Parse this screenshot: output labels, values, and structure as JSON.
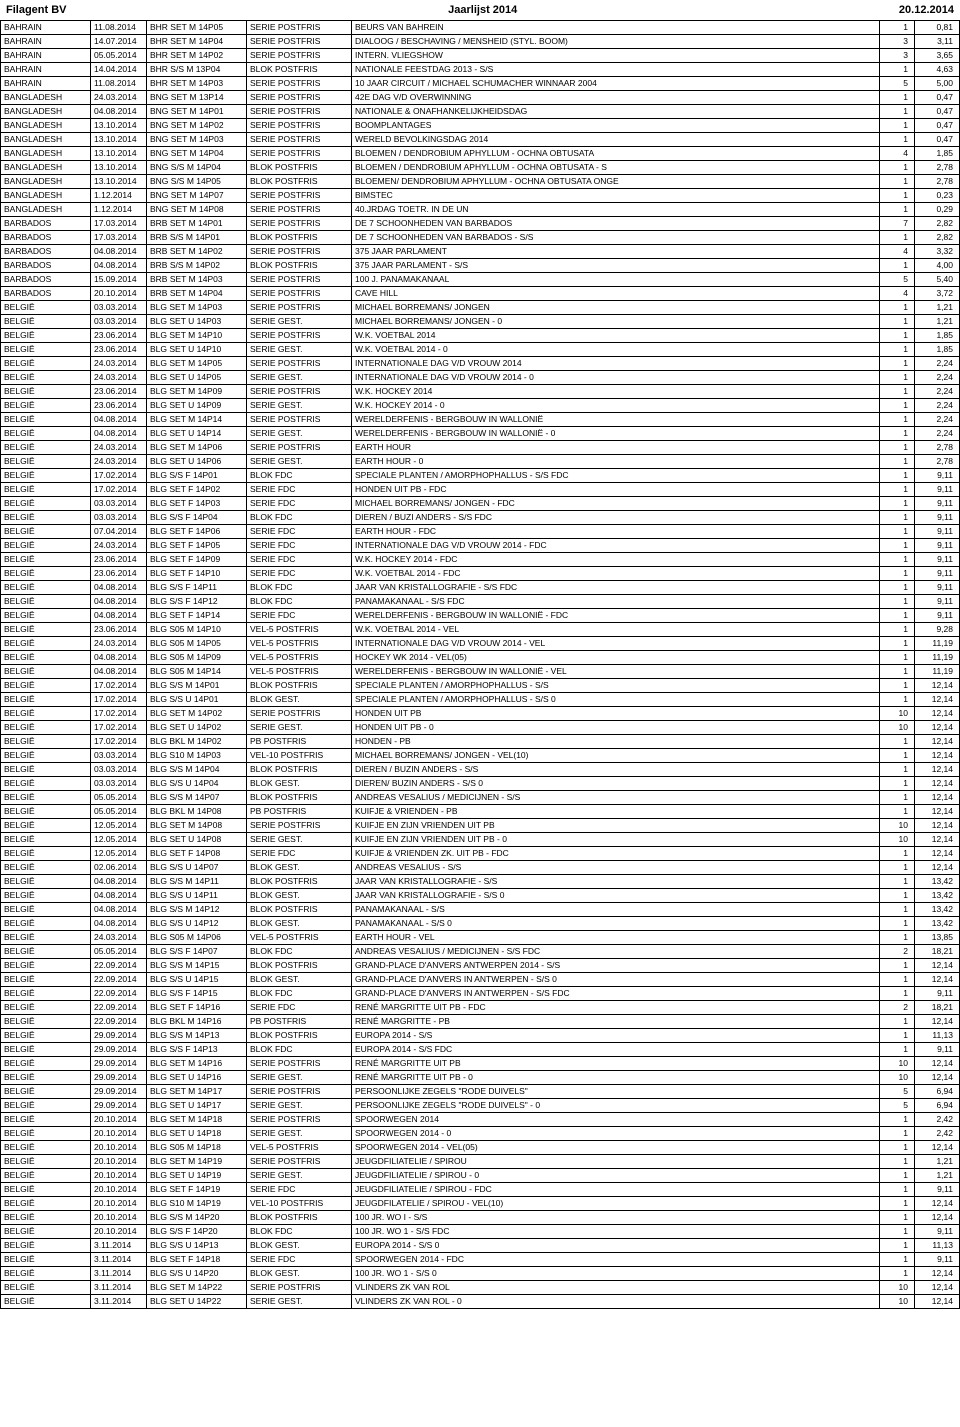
{
  "header": {
    "left": "Filagent BV",
    "center": "Jaarlijst 2014",
    "right": "20.12.2014"
  },
  "rows": [
    [
      "BAHRAIN",
      "11.08.2014",
      "BHR SET M 14P05",
      "SERIE POSTFRIS",
      "BEURS VAN BAHREIN",
      "1",
      "0,81"
    ],
    [
      "BAHRAIN",
      "14.07.2014",
      "BHR SET M 14P04",
      "SERIE POSTFRIS",
      "DIALOOG / BESCHAVING / MENSHEID (STYL. BOOM)",
      "3",
      "3,11"
    ],
    [
      "BAHRAIN",
      "05.05.2014",
      "BHR SET M 14P02",
      "SERIE POSTFRIS",
      "INTERN. VLIEGSHOW",
      "3",
      "3,65"
    ],
    [
      "BAHRAIN",
      "14.04.2014",
      "BHR S/S M 13P04",
      "BLOK POSTFRIS",
      "NATIONALE FEESTDAG 2013 - S/S",
      "1",
      "4,63"
    ],
    [
      "BAHRAIN",
      "11.08.2014",
      "BHR SET M 14P03",
      "SERIE POSTFRIS",
      "10 JAAR CIRCUIT / MICHAEL SCHUMACHER WINNAAR 2004",
      "5",
      "5,00"
    ],
    [
      "BANGLADESH",
      "24.03.2014",
      "BNG SET M 13P14",
      "SERIE POSTFRIS",
      "42E DAG V/D OVERWINNING",
      "1",
      "0,47"
    ],
    [
      "BANGLADESH",
      "04.08.2014",
      "BNG SET M 14P01",
      "SERIE POSTFRIS",
      "NATIONALE & ONAFHANKELIJKHEIDSDAG",
      "1",
      "0,47"
    ],
    [
      "BANGLADESH",
      "13.10.2014",
      "BNG SET M 14P02",
      "SERIE POSTFRIS",
      "BOOMPLANTAGES",
      "1",
      "0,47"
    ],
    [
      "BANGLADESH",
      "13.10.2014",
      "BNG SET M 14P03",
      "SERIE POSTFRIS",
      "WERELD BEVOLKINGSDAG 2014",
      "1",
      "0,47"
    ],
    [
      "BANGLADESH",
      "13.10.2014",
      "BNG SET M 14P04",
      "SERIE POSTFRIS",
      "BLOEMEN / DENDROBIUM APHYLLUM - OCHNA OBTUSATA",
      "4",
      "1,85"
    ],
    [
      "BANGLADESH",
      "13.10.2014",
      "BNG S/S M 14P04",
      "BLOK POSTFRIS",
      "BLOEMEN / DENDROBIUM APHYLLUM - OCHNA OBTUSATA - S",
      "1",
      "2,78"
    ],
    [
      "BANGLADESH",
      "13.10.2014",
      "BNG S/S M 14P05",
      "BLOK POSTFRIS",
      "BLOEMEN/ DENDROBIUM APHYLLUM - OCHNA OBTUSATA ONGE",
      "1",
      "2,78"
    ],
    [
      "BANGLADESH",
      "1.12.2014",
      "BNG SET M 14P07",
      "SERIE POSTFRIS",
      "BIMSTEC",
      "1",
      "0,23"
    ],
    [
      "BANGLADESH",
      "1.12.2014",
      "BNG SET M 14P08",
      "SERIE POSTFRIS",
      "40.JRDAG TOETR. IN DE UN",
      "1",
      "0,29"
    ],
    [
      "BARBADOS",
      "17.03.2014",
      "BRB SET M 14P01",
      "SERIE POSTFRIS",
      "DE 7 SCHOONHEDEN VAN BARBADOS",
      "7",
      "2,82"
    ],
    [
      "BARBADOS",
      "17.03.2014",
      "BRB S/S M 14P01",
      "BLOK POSTFRIS",
      "DE 7 SCHOONHEDEN VAN BARBADOS - S/S",
      "1",
      "2,82"
    ],
    [
      "BARBADOS",
      "04.08.2014",
      "BRB SET M 14P02",
      "SERIE POSTFRIS",
      "375 JAAR PARLAMENT",
      "4",
      "3,32"
    ],
    [
      "BARBADOS",
      "04.08.2014",
      "BRB S/S M 14P02",
      "BLOK POSTFRIS",
      "375 JAAR PARLAMENT - S/S",
      "1",
      "4,00"
    ],
    [
      "BARBADOS",
      "15.09.2014",
      "BRB SET M 14P03",
      "SERIE POSTFRIS",
      "100 J. PANAMAKANAAL",
      "5",
      "5,40"
    ],
    [
      "BARBADOS",
      "20.10.2014",
      "BRB SET M 14P04",
      "SERIE POSTFRIS",
      "CAVE HILL",
      "4",
      "3,72"
    ],
    [
      "BELGIË",
      "03.03.2014",
      "BLG SET M 14P03",
      "SERIE POSTFRIS",
      "MICHAEL BORREMANS/ JONGEN",
      "1",
      "1,21"
    ],
    [
      "BELGIË",
      "03.03.2014",
      "BLG SET U 14P03",
      "SERIE GEST.",
      "MICHAEL BORREMANS/ JONGEN - 0",
      "1",
      "1,21"
    ],
    [
      "BELGIË",
      "23.06.2014",
      "BLG SET M 14P10",
      "SERIE POSTFRIS",
      "W.K. VOETBAL 2014",
      "1",
      "1,85"
    ],
    [
      "BELGIË",
      "23.06.2014",
      "BLG SET U 14P10",
      "SERIE GEST.",
      "W.K. VOETBAL 2014 - 0",
      "1",
      "1,85"
    ],
    [
      "BELGIË",
      "24.03.2014",
      "BLG SET M 14P05",
      "SERIE POSTFRIS",
      "INTERNATIONALE DAG V/D VROUW 2014",
      "1",
      "2,24"
    ],
    [
      "BELGIË",
      "24.03.2014",
      "BLG SET U 14P05",
      "SERIE GEST.",
      "INTERNATIONALE DAG V/D VROUW 2014 - 0",
      "1",
      "2,24"
    ],
    [
      "BELGIË",
      "23.06.2014",
      "BLG SET M 14P09",
      "SERIE POSTFRIS",
      "W.K. HOCKEY 2014",
      "1",
      "2,24"
    ],
    [
      "BELGIË",
      "23.06.2014",
      "BLG SET U 14P09",
      "SERIE GEST.",
      "W.K. HOCKEY 2014 - 0",
      "1",
      "2,24"
    ],
    [
      "BELGIË",
      "04.08.2014",
      "BLG SET M 14P14",
      "SERIE POSTFRIS",
      "WERELDERFENIS - BERGBOUW IN WALLONIË",
      "1",
      "2,24"
    ],
    [
      "BELGIË",
      "04.08.2014",
      "BLG SET U 14P14",
      "SERIE GEST.",
      "WERELDERFENIS - BERGBOUW IN WALLONIË - 0",
      "1",
      "2,24"
    ],
    [
      "BELGIË",
      "24.03.2014",
      "BLG SET M 14P06",
      "SERIE POSTFRIS",
      "EARTH HOUR",
      "1",
      "2,78"
    ],
    [
      "BELGIË",
      "24.03.2014",
      "BLG SET U 14P06",
      "SERIE GEST.",
      "EARTH HOUR - 0",
      "1",
      "2,78"
    ],
    [
      "BELGIË",
      "17.02.2014",
      "BLG S/S F 14P01",
      "BLOK FDC",
      "SPECIALE PLANTEN / AMORPHOPHALLUS - S/S FDC",
      "1",
      "9,11"
    ],
    [
      "BELGIË",
      "17.02.2014",
      "BLG SET F 14P02",
      "SERIE FDC",
      "HONDEN UIT PB - FDC",
      "1",
      "9,11"
    ],
    [
      "BELGIË",
      "03.03.2014",
      "BLG SET F 14P03",
      "SERIE FDC",
      "MICHAEL BORREMANS/ JONGEN - FDC",
      "1",
      "9,11"
    ],
    [
      "BELGIË",
      "03.03.2014",
      "BLG S/S F 14P04",
      "BLOK FDC",
      "DIEREN / BUZI ANDERS - S/S FDC",
      "1",
      "9,11"
    ],
    [
      "BELGIË",
      "07.04.2014",
      "BLG SET F 14P06",
      "SERIE FDC",
      "EARTH HOUR - FDC",
      "1",
      "9,11"
    ],
    [
      "BELGIË",
      "24.03.2014",
      "BLG SET F 14P05",
      "SERIE FDC",
      "INTERNATIONALE DAG V/D VROUW 2014 - FDC",
      "1",
      "9,11"
    ],
    [
      "BELGIË",
      "23.06.2014",
      "BLG SET F 14P09",
      "SERIE FDC",
      "W.K. HOCKEY 2014 - FDC",
      "1",
      "9,11"
    ],
    [
      "BELGIË",
      "23.06.2014",
      "BLG SET F 14P10",
      "SERIE FDC",
      "W.K. VOETBAL 2014 - FDC",
      "1",
      "9,11"
    ],
    [
      "BELGIË",
      "04.08.2014",
      "BLG S/S F 14P11",
      "BLOK FDC",
      "JAAR VAN KRISTALLOGRAFIE - S/S FDC",
      "1",
      "9,11"
    ],
    [
      "BELGIË",
      "04.08.2014",
      "BLG S/S F 14P12",
      "BLOK FDC",
      "PANAMAKANAAL - S/S FDC",
      "1",
      "9,11"
    ],
    [
      "BELGIË",
      "04.08.2014",
      "BLG SET F 14P14",
      "SERIE FDC",
      "WERELDERFENIS - BERGBOUW IN WALLONIË - FDC",
      "1",
      "9,11"
    ],
    [
      "BELGIË",
      "23.06.2014",
      "BLG S05 M 14P10",
      "VEL-5 POSTFRIS",
      "W.K. VOETBAL 2014 - VEL",
      "1",
      "9,28"
    ],
    [
      "BELGIË",
      "24.03.2014",
      "BLG S05 M 14P05",
      "VEL-5 POSTFRIS",
      "INTERNATIONALE DAG V/D VROUW 2014 - VEL",
      "1",
      "11,19"
    ],
    [
      "BELGIË",
      "04.08.2014",
      "BLG S05 M 14P09",
      "VEL-5 POSTFRIS",
      "HOCKEY WK 2014 - VEL(05)",
      "1",
      "11,19"
    ],
    [
      "BELGIË",
      "04.08.2014",
      "BLG S05 M 14P14",
      "VEL-5 POSTFRIS",
      "WERELDERFENIS - BERGBOUW IN WALLONIË - VEL",
      "1",
      "11,19"
    ],
    [
      "BELGIË",
      "17.02.2014",
      "BLG S/S M 14P01",
      "BLOK POSTFRIS",
      "SPECIALE PLANTEN / AMORPHOPHALLUS - S/S",
      "1",
      "12,14"
    ],
    [
      "BELGIË",
      "17.02.2014",
      "BLG S/S U 14P01",
      "BLOK GEST.",
      "SPECIALE PLANTEN / AMORPHOPHALLUS - S/S 0",
      "1",
      "12,14"
    ],
    [
      "BELGIË",
      "17.02.2014",
      "BLG SET M 14P02",
      "SERIE POSTFRIS",
      "HONDEN UIT PB",
      "10",
      "12,14"
    ],
    [
      "BELGIË",
      "17.02.2014",
      "BLG SET U 14P02",
      "SERIE GEST.",
      "HONDEN UIT PB - 0",
      "10",
      "12,14"
    ],
    [
      "BELGIË",
      "17.02.2014",
      "BLG BKL M 14P02",
      "PB POSTFRIS",
      "HONDEN - PB",
      "1",
      "12,14"
    ],
    [
      "BELGIË",
      "03.03.2014",
      "BLG S10 M 14P03",
      "VEL-10 POSTFRIS",
      "MICHAEL BORREMANS/ JONGEN - VEL(10)",
      "1",
      "12,14"
    ],
    [
      "BELGIË",
      "03.03.2014",
      "BLG S/S M 14P04",
      "BLOK POSTFRIS",
      "DIEREN / BUZIN ANDERS - S/S",
      "1",
      "12,14"
    ],
    [
      "BELGIË",
      "03.03.2014",
      "BLG S/S U 14P04",
      "BLOK GEST.",
      "DIEREN/ BUZIN ANDERS - S/S 0",
      "1",
      "12,14"
    ],
    [
      "BELGIË",
      "05.05.2014",
      "BLG S/S M 14P07",
      "BLOK POSTFRIS",
      "ANDREAS VESALIUS / MEDICIJNEN - S/S",
      "1",
      "12,14"
    ],
    [
      "BELGIË",
      "05.05.2014",
      "BLG BKL M 14P08",
      "PB POSTFRIS",
      "KUIFJE & VRIENDEN - PB",
      "1",
      "12,14"
    ],
    [
      "BELGIË",
      "12.05.2014",
      "BLG SET M 14P08",
      "SERIE POSTFRIS",
      "KUIFJE EN ZIJN VRIENDEN UIT PB",
      "10",
      "12,14"
    ],
    [
      "BELGIË",
      "12.05.2014",
      "BLG SET U 14P08",
      "SERIE GEST.",
      "KUIFJE EN ZIJN VRIENDEN UIT PB - 0",
      "10",
      "12,14"
    ],
    [
      "BELGIË",
      "12.05.2014",
      "BLG SET F 14P08",
      "SERIE FDC",
      "KUIFJE & VRIENDEN ZK. UIT PB - FDC",
      "1",
      "12,14"
    ],
    [
      "BELGIË",
      "02.06.2014",
      "BLG S/S U 14P07",
      "BLOK GEST.",
      "ANDREAS VESALIUS - S/S",
      "1",
      "12,14"
    ],
    [
      "BELGIË",
      "04.08.2014",
      "BLG S/S M 14P11",
      "BLOK POSTFRIS",
      "JAAR VAN KRISTALLOGRAFIE - S/S",
      "1",
      "13,42"
    ],
    [
      "BELGIË",
      "04.08.2014",
      "BLG S/S U 14P11",
      "BLOK GEST.",
      "JAAR VAN KRISTALLOGRAFIE - S/S 0",
      "1",
      "13,42"
    ],
    [
      "BELGIË",
      "04.08.2014",
      "BLG S/S M 14P12",
      "BLOK POSTFRIS",
      "PANAMAKANAAL - S/S",
      "1",
      "13,42"
    ],
    [
      "BELGIË",
      "04.08.2014",
      "BLG S/S U 14P12",
      "BLOK GEST.",
      "PANAMAKANAAL - S/S 0",
      "1",
      "13,42"
    ],
    [
      "BELGIË",
      "24.03.2014",
      "BLG S05 M 14P06",
      "VEL-5 POSTFRIS",
      "EARTH HOUR - VEL",
      "1",
      "13,85"
    ],
    [
      "BELGIË",
      "05.05.2014",
      "BLG S/S F 14P07",
      "BLOK FDC",
      "ANDREAS VESALIUS / MEDICIJNEN - S/S FDC",
      "2",
      "18,21"
    ],
    [
      "BELGIË",
      "22.09.2014",
      "BLG S/S M 14P15",
      "BLOK POSTFRIS",
      "GRAND-PLACE D'ANVERS ANTWERPEN 2014 - S/S",
      "1",
      "12,14"
    ],
    [
      "BELGIË",
      "22.09.2014",
      "BLG S/S U 14P15",
      "BLOK GEST.",
      "GRAND-PLACE D'ANVERS IN ANTWERPEN - S/S 0",
      "1",
      "12,14"
    ],
    [
      "BELGIË",
      "22.09.2014",
      "BLG S/S F 14P15",
      "BLOK FDC",
      "GRAND-PLACE D'ANVERS IN ANTWERPEN - S/S FDC",
      "1",
      "9,11"
    ],
    [
      "BELGIË",
      "22.09.2014",
      "BLG SET F 14P16",
      "SERIE FDC",
      "RENÉ MARGRITTE UIT PB - FDC",
      "2",
      "18,21"
    ],
    [
      "BELGIË",
      "22.09.2014",
      "BLG BKL M 14P16",
      "PB POSTFRIS",
      "RENÉ MARGRITTE - PB",
      "1",
      "12,14"
    ],
    [
      "BELGIË",
      "29.09.2014",
      "BLG S/S M 14P13",
      "BLOK POSTFRIS",
      "EUROPA 2014 - S/S",
      "1",
      "11,13"
    ],
    [
      "BELGIË",
      "29.09.2014",
      "BLG S/S F 14P13",
      "BLOK FDC",
      "EUROPA 2014 - S/S FDC",
      "1",
      "9,11"
    ],
    [
      "BELGIË",
      "29.09.2014",
      "BLG SET M 14P16",
      "SERIE POSTFRIS",
      "RENÉ MARGRITTE UIT PB",
      "10",
      "12,14"
    ],
    [
      "BELGIË",
      "29.09.2014",
      "BLG SET U 14P16",
      "SERIE GEST.",
      "RENÉ MARGRITTE UIT PB - 0",
      "10",
      "12,14"
    ],
    [
      "BELGIË",
      "29.09.2014",
      "BLG SET M 14P17",
      "SERIE POSTFRIS",
      "PERSOONLIJKE ZEGELS \"RODE DUIVELS\"",
      "5",
      "6,94"
    ],
    [
      "BELGIË",
      "29.09.2014",
      "BLG SET U 14P17",
      "SERIE GEST.",
      "PERSOONLIJKE ZEGELS \"RODE DUIVELS\" - 0",
      "5",
      "6,94"
    ],
    [
      "BELGIË",
      "20.10.2014",
      "BLG SET M 14P18",
      "SERIE POSTFRIS",
      "SPOORWEGEN 2014",
      "1",
      "2,42"
    ],
    [
      "BELGIË",
      "20.10.2014",
      "BLG SET U 14P18",
      "SERIE GEST.",
      "SPOORWEGEN 2014 - 0",
      "1",
      "2,42"
    ],
    [
      "BELGIË",
      "20.10.2014",
      "BLG S05 M 14P18",
      "VEL-5 POSTFRIS",
      "SPOORWEGEN 2014 - VEL(05)",
      "1",
      "12,14"
    ],
    [
      "BELGIË",
      "20.10.2014",
      "BLG SET M 14P19",
      "SERIE POSTFRIS",
      "JEUGDFILIATELIE / SPIROU",
      "1",
      "1,21"
    ],
    [
      "BELGIË",
      "20.10.2014",
      "BLG SET U 14P19",
      "SERIE GEST.",
      "JEUGDFILIATELIE / SPIROU - 0",
      "1",
      "1,21"
    ],
    [
      "BELGIË",
      "20.10.2014",
      "BLG SET F 14P19",
      "SERIE FDC",
      "JEUGDFILIATELIE / SPIROU - FDC",
      "1",
      "9,11"
    ],
    [
      "BELGIË",
      "20.10.2014",
      "BLG S10 M 14P19",
      "VEL-10 POSTFRIS",
      "JEUGDFILATELIE / SPIROU - VEL(10)",
      "1",
      "12,14"
    ],
    [
      "BELGIË",
      "20.10.2014",
      "BLG S/S M 14P20",
      "BLOK POSTFRIS",
      "100 JR. WO I - S/S",
      "1",
      "12,14"
    ],
    [
      "BELGIË",
      "20.10.2014",
      "BLG S/S F 14P20",
      "BLOK FDC",
      "100 JR. WO 1 - S/S FDC",
      "1",
      "9,11"
    ],
    [
      "BELGIË",
      "3.11.2014",
      "BLG S/S U 14P13",
      "BLOK GEST.",
      "EUROPA 2014 - S/S 0",
      "1",
      "11,13"
    ],
    [
      "BELGIË",
      "3.11.2014",
      "BLG SET F 14P18",
      "SERIE FDC",
      "SPOORWEGEN 2014 - FDC",
      "1",
      "9,11"
    ],
    [
      "BELGIË",
      "3.11.2014",
      "BLG S/S U 14P20",
      "BLOK GEST.",
      "100 JR. WO 1 - S/S 0",
      "1",
      "12,14"
    ],
    [
      "BELGIË",
      "3.11.2014",
      "BLG SET M 14P22",
      "SERIE POSTFRIS",
      "VLINDERS ZK VAN ROL",
      "10",
      "12,14"
    ],
    [
      "BELGIË",
      "3.11.2014",
      "BLG SET U 14P22",
      "SERIE GEST.",
      "VLINDERS ZK VAN ROL - 0",
      "10",
      "12,14"
    ]
  ]
}
